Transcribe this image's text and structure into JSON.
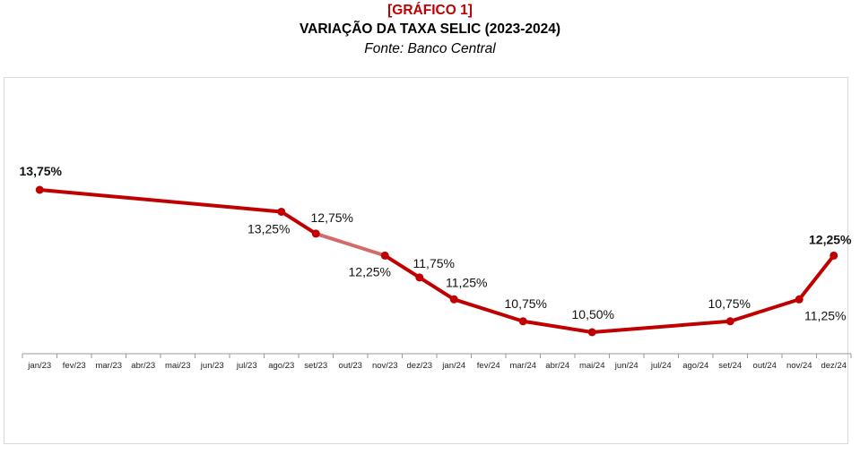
{
  "header": {
    "tag": "[GRÁFICO 1]",
    "title": "VARIAÇÃO DA TAXA SELIC (2023-2024)",
    "source": "Fonte: Banco Central"
  },
  "colors": {
    "tag": "#c00000",
    "line": "#c00000",
    "line_soft": "#d36b6b",
    "axis": "#9a9a9a",
    "label": "#111111",
    "highlight": "#c00000"
  },
  "chart_data": {
    "type": "line",
    "categories": [
      "jan/23",
      "fev/23",
      "mar/23",
      "abr/23",
      "mai/23",
      "jun/23",
      "jul/23",
      "ago/23",
      "set/23",
      "out/23",
      "nov/23",
      "dez/23",
      "jan/24",
      "fev/24",
      "mar/24",
      "abr/24",
      "mai/24",
      "jun/24",
      "jul/24",
      "ago/24",
      "set/24",
      "out/24",
      "nov/24",
      "dez/24"
    ],
    "points": [
      {
        "x": 0.5,
        "y": 13.75,
        "label": "13,75%"
      },
      {
        "x": 7.5,
        "y": 13.25,
        "label": "13,25%"
      },
      {
        "x": 8.5,
        "y": 12.75,
        "label": "12,75%"
      },
      {
        "x": 10.5,
        "y": 12.25,
        "label": "12,25%"
      },
      {
        "x": 11.5,
        "y": 11.75,
        "label": "11,75%"
      },
      {
        "x": 12.5,
        "y": 11.25,
        "label": "11,25%"
      },
      {
        "x": 14.5,
        "y": 10.75,
        "label": "10,75%"
      },
      {
        "x": 16.5,
        "y": 10.5,
        "label": "10,50%"
      },
      {
        "x": 20.5,
        "y": 10.75,
        "label": "10,75%"
      },
      {
        "x": 22.5,
        "y": 11.25,
        "label": "11,25%"
      },
      {
        "x": 23.5,
        "y": 12.25,
        "label": "12,25%"
      }
    ],
    "title": "VARIAÇÃO DA TAXA SELIC (2023-2024)",
    "xlabel": "",
    "ylabel": "",
    "grid": false,
    "legend": "none"
  }
}
